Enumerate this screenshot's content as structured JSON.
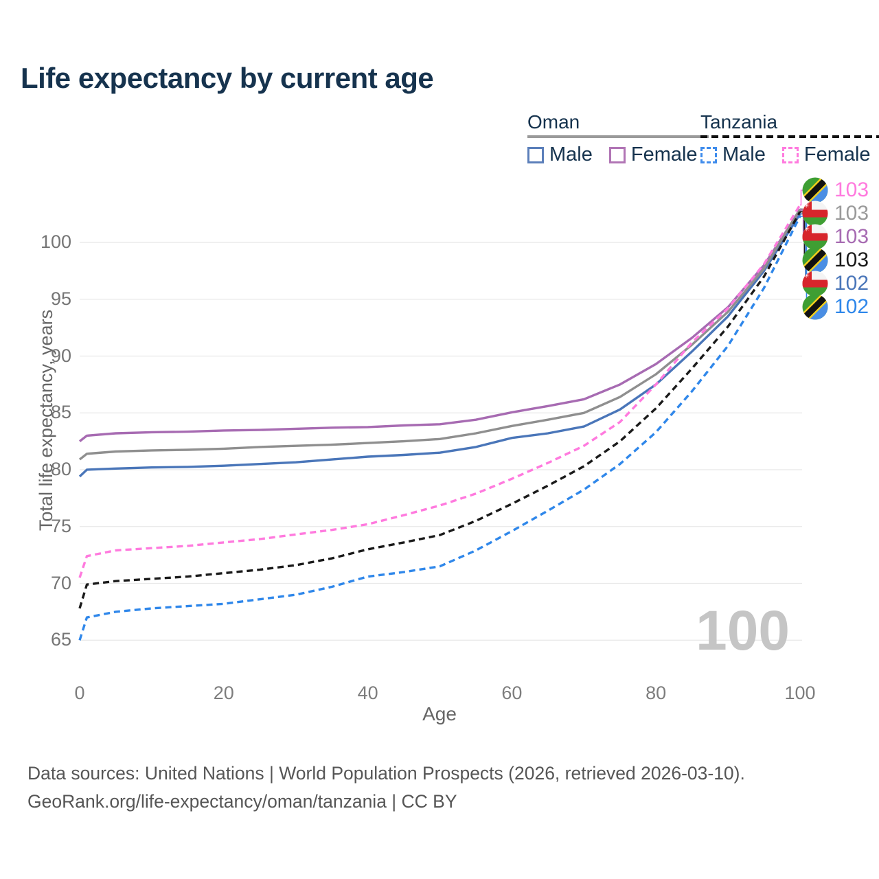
{
  "title": "Life expectancy by current age",
  "legend": {
    "oman": {
      "label": "Oman",
      "male": "Male",
      "female": "Female"
    },
    "tanzania": {
      "label": "Tanzania",
      "male": "Male",
      "female": "Female"
    }
  },
  "colors": {
    "title_text": "#16334e",
    "oman_male": "#4a76b9",
    "oman_female": "#a76bb2",
    "oman_both": "#8f8f8f",
    "tanzania_male": "#2f87ea",
    "tanzania_female": "#ff7ade",
    "tanzania_both": "#1a1a1a",
    "gridline": "#e8e8e8",
    "watermark": "#c5c5c5",
    "oman_flag_red": "#d7252c",
    "oman_flag_green": "#3f9e33",
    "tanzania_flag_green": "#3d9e33",
    "tanzania_flag_blue": "#4a8ee4",
    "tanzania_flag_yellow": "#f2cf1c"
  },
  "chart_data": {
    "type": "line",
    "title": "Life expectancy by current age",
    "xlabel": "Age",
    "ylabel": "Total life expectancy, years",
    "xlim": [
      0,
      100
    ],
    "ylim": [
      63.5,
      103.5
    ],
    "x_ticks": [
      0,
      20,
      40,
      60,
      80,
      100
    ],
    "y_ticks": [
      65,
      70,
      75,
      80,
      85,
      90,
      95,
      100
    ],
    "grid": "horizontal",
    "legend_position": "top-right",
    "watermark": "100",
    "x": [
      0,
      1,
      5,
      10,
      15,
      20,
      25,
      30,
      35,
      40,
      45,
      50,
      55,
      60,
      65,
      70,
      75,
      80,
      85,
      90,
      95,
      100
    ],
    "series": [
      {
        "name": "Oman Male",
        "country": "Oman",
        "sex": "Male",
        "style": "solid",
        "color": "#4a76b9",
        "values": [
          79.4,
          80.0,
          80.1,
          80.2,
          80.25,
          80.35,
          80.5,
          80.65,
          80.9,
          81.15,
          81.3,
          81.5,
          82.0,
          82.8,
          83.2,
          83.8,
          85.3,
          87.5,
          90.4,
          93.5,
          97.5,
          102.5
        ]
      },
      {
        "name": "Oman Female",
        "country": "Oman",
        "sex": "Female",
        "style": "solid",
        "color": "#a76bb2",
        "values": [
          82.5,
          83.0,
          83.2,
          83.3,
          83.35,
          83.45,
          83.5,
          83.6,
          83.7,
          83.75,
          83.9,
          84.0,
          84.4,
          85.05,
          85.6,
          86.2,
          87.5,
          89.3,
          91.6,
          94.3,
          98.0,
          102.85
        ]
      },
      {
        "name": "Oman Both sexes",
        "country": "Oman",
        "sex": "Both",
        "style": "solid",
        "color": "#8f8f8f",
        "values": [
          80.9,
          81.4,
          81.6,
          81.7,
          81.75,
          81.85,
          82.0,
          82.1,
          82.2,
          82.35,
          82.5,
          82.7,
          83.2,
          83.85,
          84.4,
          85.0,
          86.4,
          88.4,
          91.0,
          93.9,
          97.7,
          102.95
        ]
      },
      {
        "name": "Tanzania Male",
        "country": "Tanzania",
        "sex": "Male",
        "style": "dashed",
        "color": "#2f87ea",
        "values": [
          65.0,
          67.0,
          67.5,
          67.8,
          68.0,
          68.2,
          68.6,
          69.0,
          69.7,
          70.6,
          71.0,
          71.5,
          72.9,
          74.6,
          76.4,
          78.25,
          80.5,
          83.3,
          86.9,
          90.9,
          96.0,
          102.3
        ]
      },
      {
        "name": "Tanzania Female",
        "country": "Tanzania",
        "sex": "Female",
        "style": "dashed",
        "color": "#ff7ade",
        "values": [
          70.5,
          72.4,
          72.9,
          73.1,
          73.3,
          73.6,
          73.9,
          74.3,
          74.7,
          75.2,
          76.0,
          76.85,
          77.9,
          79.2,
          80.6,
          82.1,
          84.2,
          87.5,
          91.2,
          94.2,
          98.1,
          103.3
        ]
      },
      {
        "name": "Tanzania Both sexes",
        "country": "Tanzania",
        "sex": "Both",
        "style": "dashed",
        "color": "#1a1a1a",
        "values": [
          67.8,
          69.9,
          70.2,
          70.4,
          70.6,
          70.9,
          71.2,
          71.6,
          72.2,
          73.0,
          73.6,
          74.25,
          75.5,
          77.0,
          78.6,
          80.3,
          82.5,
          85.4,
          88.9,
          92.6,
          97.0,
          102.7
        ]
      }
    ],
    "end_labels": [
      {
        "value": "103",
        "series_index": 4,
        "color": "#ff7ade",
        "flag": "tanzania"
      },
      {
        "value": "103",
        "series_index": 2,
        "color": "#9a9a9a",
        "flag": "oman"
      },
      {
        "value": "103",
        "series_index": 1,
        "color": "#a76bb2",
        "flag": "oman"
      },
      {
        "value": "103",
        "series_index": 5,
        "color": "#1a1a1a",
        "flag": "tanzania"
      },
      {
        "value": "102",
        "series_index": 0,
        "color": "#4a76b9",
        "flag": "oman"
      },
      {
        "value": "102",
        "series_index": 3,
        "color": "#2f87ea",
        "flag": "tanzania"
      }
    ]
  },
  "footer": {
    "line1": "Data sources: United Nations | World Population Prospects (2026, retrieved 2026-03-10).",
    "line2": "GeoRank.org/life-expectancy/oman/tanzania | CC BY"
  }
}
